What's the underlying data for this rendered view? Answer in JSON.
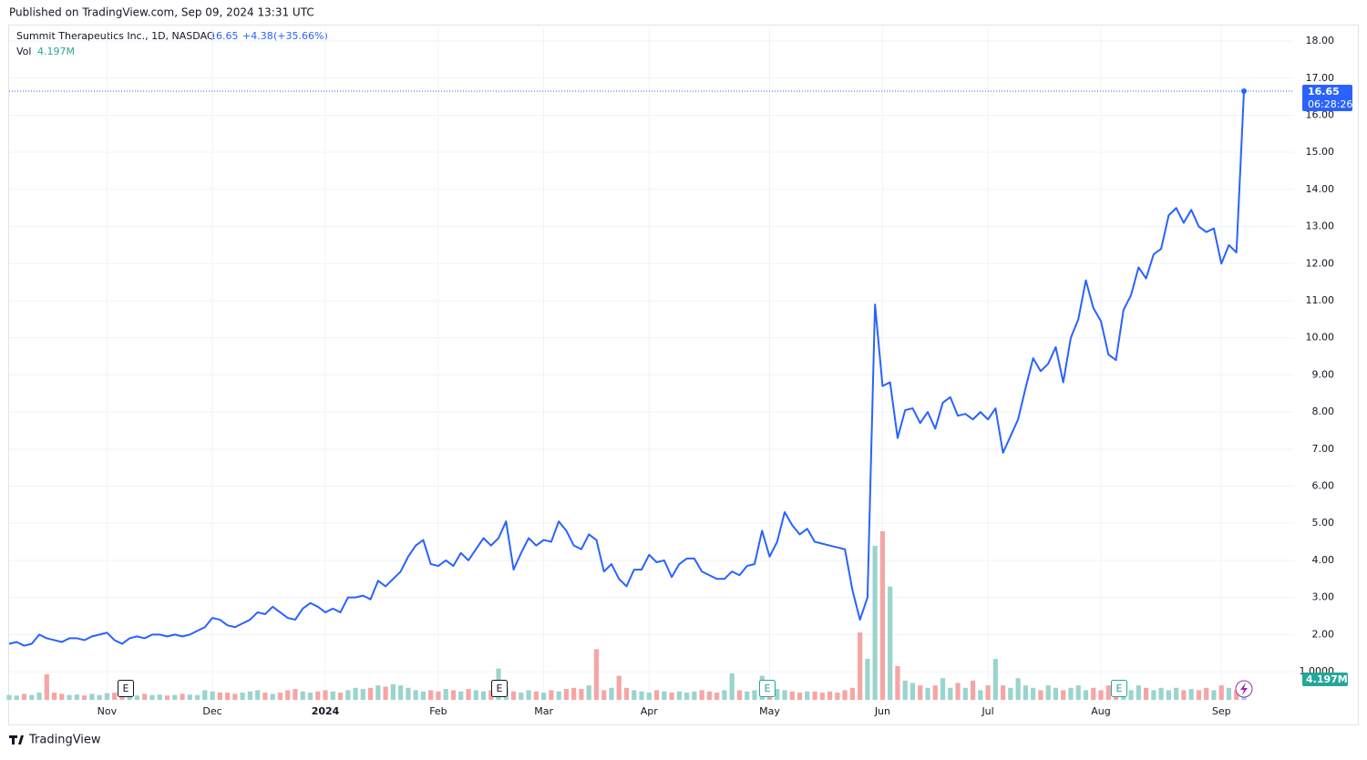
{
  "published": "Published on TradingView.com, Sep 09, 2024 13:31 UTC",
  "brand": "TradingView",
  "chart_data": {
    "type": "line",
    "title": "Summit Therapeutics Inc., 1D, NASDAQ",
    "legend": {
      "price": 16.65,
      "change": {
        "value": 4.38,
        "label": "+4.38"
      },
      "change_pct": {
        "value": 35.66,
        "label": "(+35.66%)"
      }
    },
    "countdown": "06:28:26",
    "categories": [
      null,
      null,
      null,
      null,
      null,
      null,
      null,
      null,
      null,
      null,
      null,
      null,
      null,
      "Nov",
      null,
      null,
      null,
      null,
      null,
      null,
      null,
      null,
      null,
      null,
      null,
      null,
      null,
      "Dec",
      null,
      null,
      null,
      null,
      null,
      null,
      null,
      null,
      null,
      null,
      null,
      null,
      null,
      null,
      "2024",
      null,
      null,
      null,
      null,
      null,
      null,
      null,
      null,
      null,
      null,
      null,
      null,
      null,
      null,
      "Feb",
      null,
      null,
      null,
      null,
      null,
      null,
      null,
      null,
      null,
      null,
      null,
      null,
      null,
      "Mar",
      null,
      null,
      null,
      null,
      null,
      null,
      null,
      null,
      null,
      null,
      null,
      null,
      null,
      "Apr",
      null,
      null,
      null,
      null,
      null,
      null,
      null,
      null,
      null,
      null,
      null,
      null,
      null,
      null,
      null,
      "May",
      null,
      null,
      null,
      null,
      null,
      null,
      null,
      null,
      null,
      null,
      null,
      null,
      null,
      null,
      "Jun",
      null,
      null,
      null,
      null,
      null,
      null,
      null,
      null,
      null,
      null,
      null,
      null,
      null,
      "Jul",
      null,
      null,
      null,
      null,
      null,
      null,
      null,
      null,
      null,
      null,
      null,
      null,
      null,
      null,
      "Aug",
      null,
      null,
      null,
      null,
      null,
      null,
      null,
      null,
      null,
      null,
      null,
      null,
      null,
      null,
      null,
      "Sep",
      null,
      null,
      null
    ],
    "series": [
      {
        "name": "Summit Therapeutics Inc.",
        "color": "#2962ff",
        "values": [
          1.75,
          1.8,
          1.7,
          1.75,
          2.0,
          1.9,
          1.85,
          1.8,
          1.9,
          1.9,
          1.85,
          1.95,
          2.0,
          2.05,
          1.85,
          1.75,
          1.9,
          1.95,
          1.9,
          2.0,
          2.0,
          1.95,
          2.0,
          1.95,
          2.0,
          2.1,
          2.2,
          2.45,
          2.4,
          2.25,
          2.2,
          2.3,
          2.4,
          2.6,
          2.55,
          2.75,
          2.6,
          2.45,
          2.4,
          2.7,
          2.85,
          2.75,
          2.6,
          2.7,
          2.6,
          3.0,
          3.0,
          3.05,
          2.95,
          3.45,
          3.3,
          3.5,
          3.7,
          4.1,
          4.4,
          4.55,
          3.9,
          3.85,
          4.0,
          3.85,
          4.2,
          4.0,
          4.3,
          4.6,
          4.4,
          4.6,
          5.05,
          3.75,
          4.2,
          4.6,
          4.4,
          4.55,
          4.5,
          5.05,
          4.8,
          4.4,
          4.3,
          4.7,
          4.55,
          3.7,
          3.9,
          3.5,
          3.3,
          3.75,
          3.75,
          4.15,
          3.95,
          4.0,
          3.55,
          3.9,
          4.05,
          4.05,
          3.7,
          3.6,
          3.5,
          3.5,
          3.7,
          3.6,
          3.85,
          3.9,
          4.8,
          4.1,
          4.5,
          5.3,
          4.95,
          4.7,
          4.85,
          4.5,
          4.45,
          4.4,
          4.35,
          4.3,
          3.2,
          2.4,
          3.0,
          10.9,
          8.7,
          8.8,
          7.3,
          8.05,
          8.1,
          7.7,
          8.0,
          7.55,
          8.25,
          8.4,
          7.9,
          7.95,
          7.8,
          8.0,
          7.8,
          8.1,
          6.9,
          7.35,
          7.8,
          8.65,
          9.45,
          9.1,
          9.3,
          9.75,
          8.8,
          10.0,
          10.5,
          11.55,
          10.8,
          10.45,
          9.55,
          9.4,
          10.75,
          11.15,
          11.9,
          11.6,
          12.25,
          12.4,
          13.3,
          13.5,
          13.1,
          13.45,
          13.0,
          12.85,
          12.95,
          12.0,
          12.5,
          12.3,
          16.65
        ]
      }
    ],
    "volume": {
      "name": "Vol",
      "up_color": "#9ad4cd",
      "down_color": "#f5a6a4",
      "value_labels_last": "4.197M",
      "tag_color": "#26a69a",
      "values": [
        2,
        1.8,
        2.5,
        2,
        3,
        10.6,
        3,
        2.5,
        2,
        2.2,
        1.8,
        2.5,
        2,
        2.8,
        3,
        2.5,
        2,
        1.8,
        2.5,
        2,
        2.2,
        1.8,
        2,
        2.5,
        2.2,
        2,
        4,
        3.5,
        3,
        3,
        2.5,
        3,
        3.5,
        4,
        3,
        2.5,
        3,
        4,
        4.5,
        3.5,
        3,
        3.5,
        4,
        3.5,
        3,
        4,
        5,
        4.5,
        5,
        6,
        5.5,
        6.5,
        6,
        5,
        4,
        3.5,
        4,
        3.5,
        4.5,
        4,
        3.5,
        4.5,
        4,
        3.5,
        4,
        13,
        5,
        3.5,
        3,
        4,
        3.5,
        3,
        4,
        3.5,
        4.5,
        5,
        4.5,
        6,
        21,
        4,
        5,
        10,
        5,
        4,
        3.5,
        3,
        4,
        3.5,
        3,
        3.5,
        3,
        3.5,
        4,
        3.5,
        3,
        4,
        11,
        4,
        3.5,
        4,
        10,
        5,
        4.5,
        4,
        3.5,
        3,
        3.5,
        3.5,
        3,
        3.5,
        3,
        4,
        5,
        28,
        17,
        64,
        70,
        47,
        14,
        8,
        7,
        6,
        5,
        6,
        9,
        5,
        7,
        5,
        8,
        4,
        6,
        17,
        6,
        5,
        9,
        6,
        5,
        4,
        6,
        5,
        4,
        5,
        6,
        4,
        5,
        4,
        6,
        7,
        5,
        4,
        6,
        5,
        4,
        5,
        4,
        5,
        4,
        4.5,
        4,
        5,
        4,
        6,
        5,
        4,
        4.197
      ]
    },
    "ylim": [
      0.24,
      18.37
    ],
    "yticks": [
      {
        "value": 1,
        "label": "1.0000"
      },
      {
        "value": 2,
        "label": "2.00"
      },
      {
        "value": 3,
        "label": "3.00"
      },
      {
        "value": 4,
        "label": "4.00"
      },
      {
        "value": 5,
        "label": "5.00"
      },
      {
        "value": 6,
        "label": "6.00"
      },
      {
        "value": 7,
        "label": "7.00"
      },
      {
        "value": 8,
        "label": "8.00"
      },
      {
        "value": 9,
        "label": "9.00"
      },
      {
        "value": 10,
        "label": "10.00"
      },
      {
        "value": 11,
        "label": "11.00"
      },
      {
        "value": 12,
        "label": "12.00"
      },
      {
        "value": 13,
        "label": "13.00"
      },
      {
        "value": 14,
        "label": "14.00"
      },
      {
        "value": 15,
        "label": "15.00"
      },
      {
        "value": 16,
        "label": "16.00"
      },
      {
        "value": 17,
        "label": "17.00"
      },
      {
        "value": 18,
        "label": "18.00"
      }
    ],
    "grid": true
  }
}
